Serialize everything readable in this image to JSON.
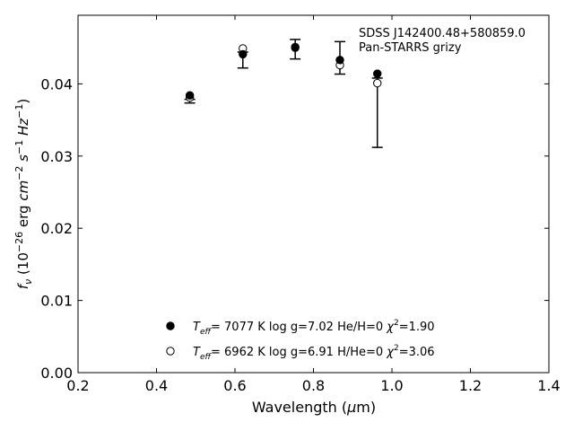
{
  "chart_data": {
    "type": "scatter",
    "title_lines": [
      "SDSS J142400.48+580859.0",
      "Pan-STARRS grizy"
    ],
    "xlabel": {
      "main": "Wavelength (",
      "mu": "μ",
      "unit": "m)"
    },
    "ylabel": "f_ν (10^-26 erg cm^-2 s^-1 Hz^-1)",
    "xlim": [
      0.2,
      1.4
    ],
    "ylim": [
      0.0,
      0.0495
    ],
    "x_ticks": [
      0.2,
      0.4,
      0.6,
      0.8,
      1.0,
      1.2,
      1.4
    ],
    "x_tick_labels": [
      "0.2",
      "0.4",
      "0.6",
      "0.8",
      "1.0",
      "1.2",
      "1.4"
    ],
    "y_ticks": [
      0.0,
      0.01,
      0.02,
      0.03,
      0.04
    ],
    "y_tick_labels": [
      "0.00",
      "0.01",
      "0.02",
      "0.03",
      "0.04"
    ],
    "grid": false,
    "legend_position": "lower-center",
    "observed": {
      "x": [
        0.4849,
        0.6201,
        0.7535,
        0.8674,
        0.9628
      ],
      "y": [
        0.0376,
        0.0433,
        0.0448,
        0.0436,
        0.036
      ],
      "yerr": [
        0.00025,
        0.0011,
        0.00135,
        0.00225,
        0.0048
      ]
    },
    "series": [
      {
        "marker": "filled-circle",
        "legend": {
          "pre": "T",
          "sub": "eff",
          "mid": "=  7077 K  log g=7.02  He/H=0  ",
          "chi": "χ",
          "sup": "2",
          "post": "=1.90"
        },
        "x": [
          0.4849,
          0.6201,
          0.7535,
          0.8674,
          0.9628
        ],
        "y": [
          0.0384,
          0.0441,
          0.045,
          0.0433,
          0.0414
        ]
      },
      {
        "marker": "open-circle",
        "legend": {
          "pre": "T",
          "sub": "eff",
          "mid": "=  6962 K  log g=6.91  H/He=0  ",
          "chi": "χ",
          "sup": "2",
          "post": "=3.06"
        },
        "x": [
          0.4849,
          0.6201,
          0.7535,
          0.8674,
          0.9628
        ],
        "y": [
          0.0381,
          0.0449,
          0.0451,
          0.0426,
          0.0401
        ]
      }
    ],
    "colors": {
      "marker": "#000000",
      "axes": "#000000",
      "background": "#ffffff"
    }
  }
}
